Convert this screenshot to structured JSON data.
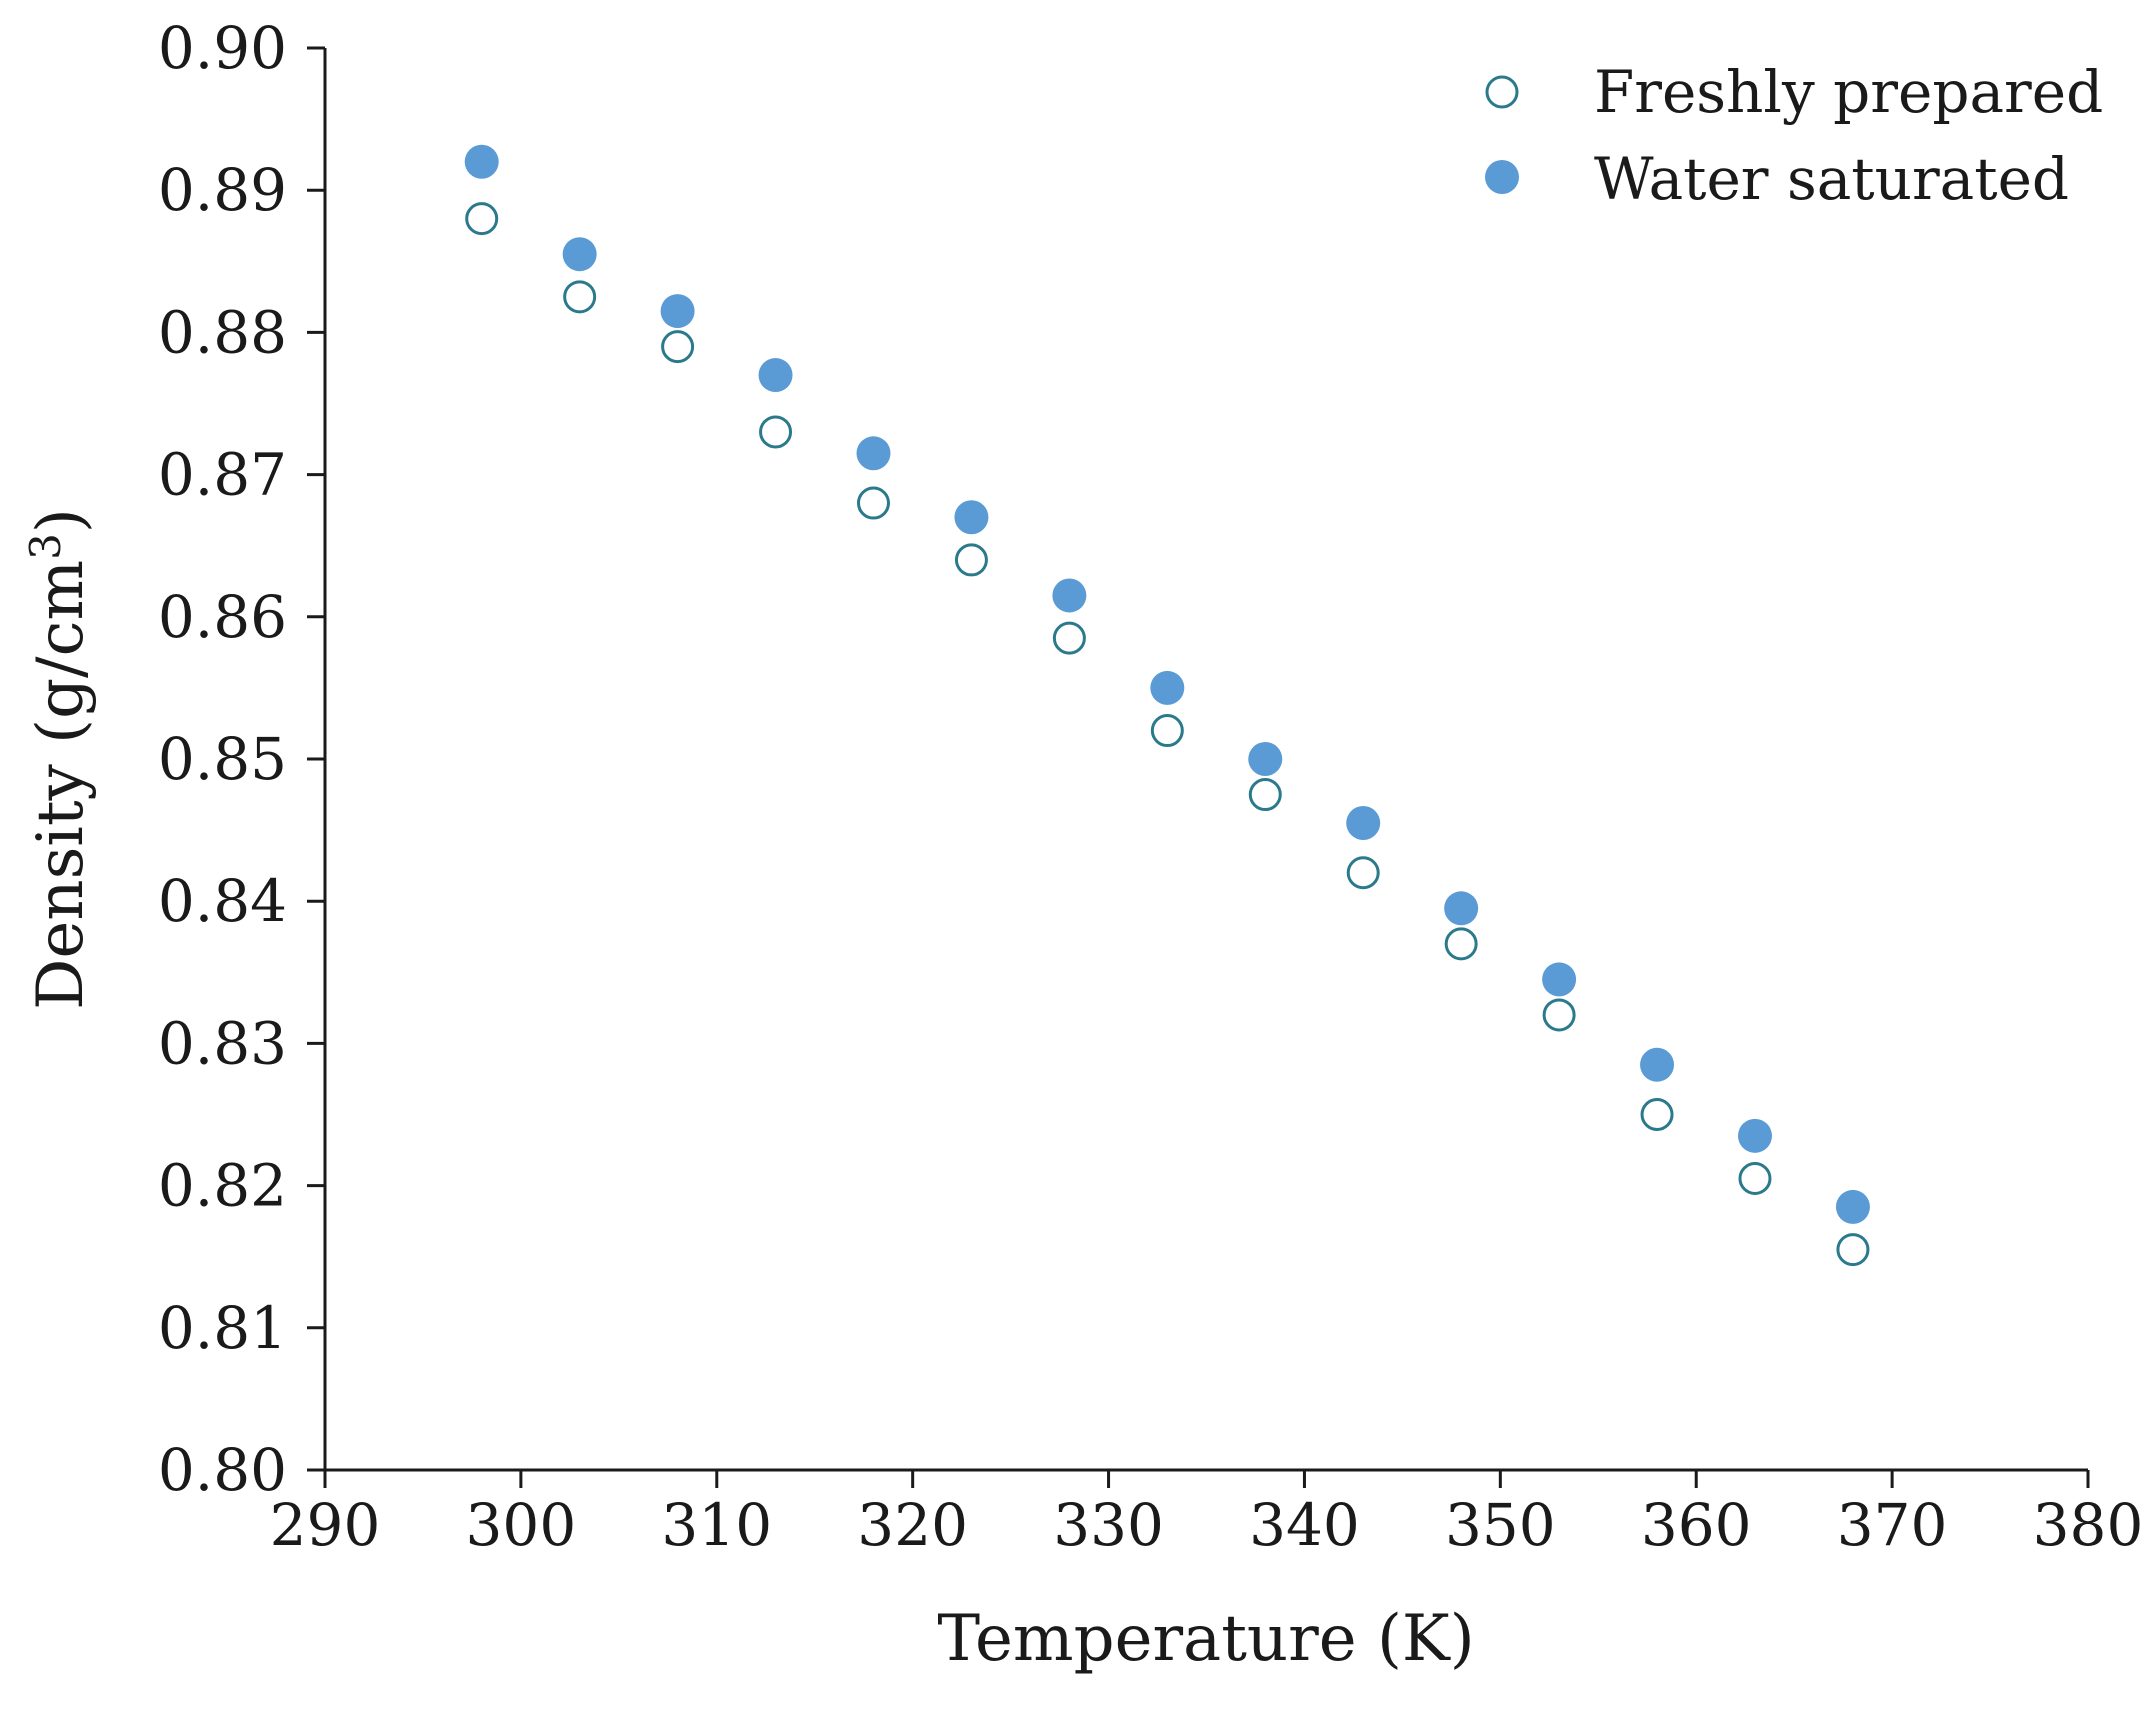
{
  "chart_data": {
    "type": "scatter",
    "title": "",
    "xlabel": "Temperature (K)",
    "ylabel": "Density (g/cm",
    "ylabel_superscript": "3",
    "ylabel_close": ")",
    "xlim": [
      290,
      380
    ],
    "ylim": [
      0.8,
      0.9
    ],
    "x_ticks": [
      "290",
      "300",
      "310",
      "320",
      "330",
      "340",
      "350",
      "360",
      "370",
      "380"
    ],
    "y_ticks": [
      "0.80",
      "0.81",
      "0.82",
      "0.83",
      "0.84",
      "0.85",
      "0.86",
      "0.87",
      "0.88",
      "0.89",
      "0.90"
    ],
    "grid": false,
    "legend_position": "top-right",
    "x": [
      298,
      303,
      308,
      313,
      318,
      323,
      328,
      333,
      338,
      343,
      348,
      353,
      358,
      363,
      368
    ],
    "series": [
      {
        "name": "Freshly prepared",
        "marker": "open-circle",
        "color": "#2a7a8c",
        "values": [
          0.888,
          0.8825,
          0.879,
          0.873,
          0.868,
          0.864,
          0.8585,
          0.852,
          0.8475,
          0.842,
          0.837,
          0.832,
          0.825,
          0.8205,
          0.8155
        ]
      },
      {
        "name": "Water saturated",
        "marker": "filled-circle",
        "color": "#5b9bd5",
        "values": [
          0.892,
          0.8855,
          0.8815,
          0.877,
          0.8715,
          0.867,
          0.8615,
          0.855,
          0.85,
          0.8455,
          0.8395,
          0.8345,
          0.8285,
          0.8235,
          0.8185
        ]
      }
    ]
  }
}
